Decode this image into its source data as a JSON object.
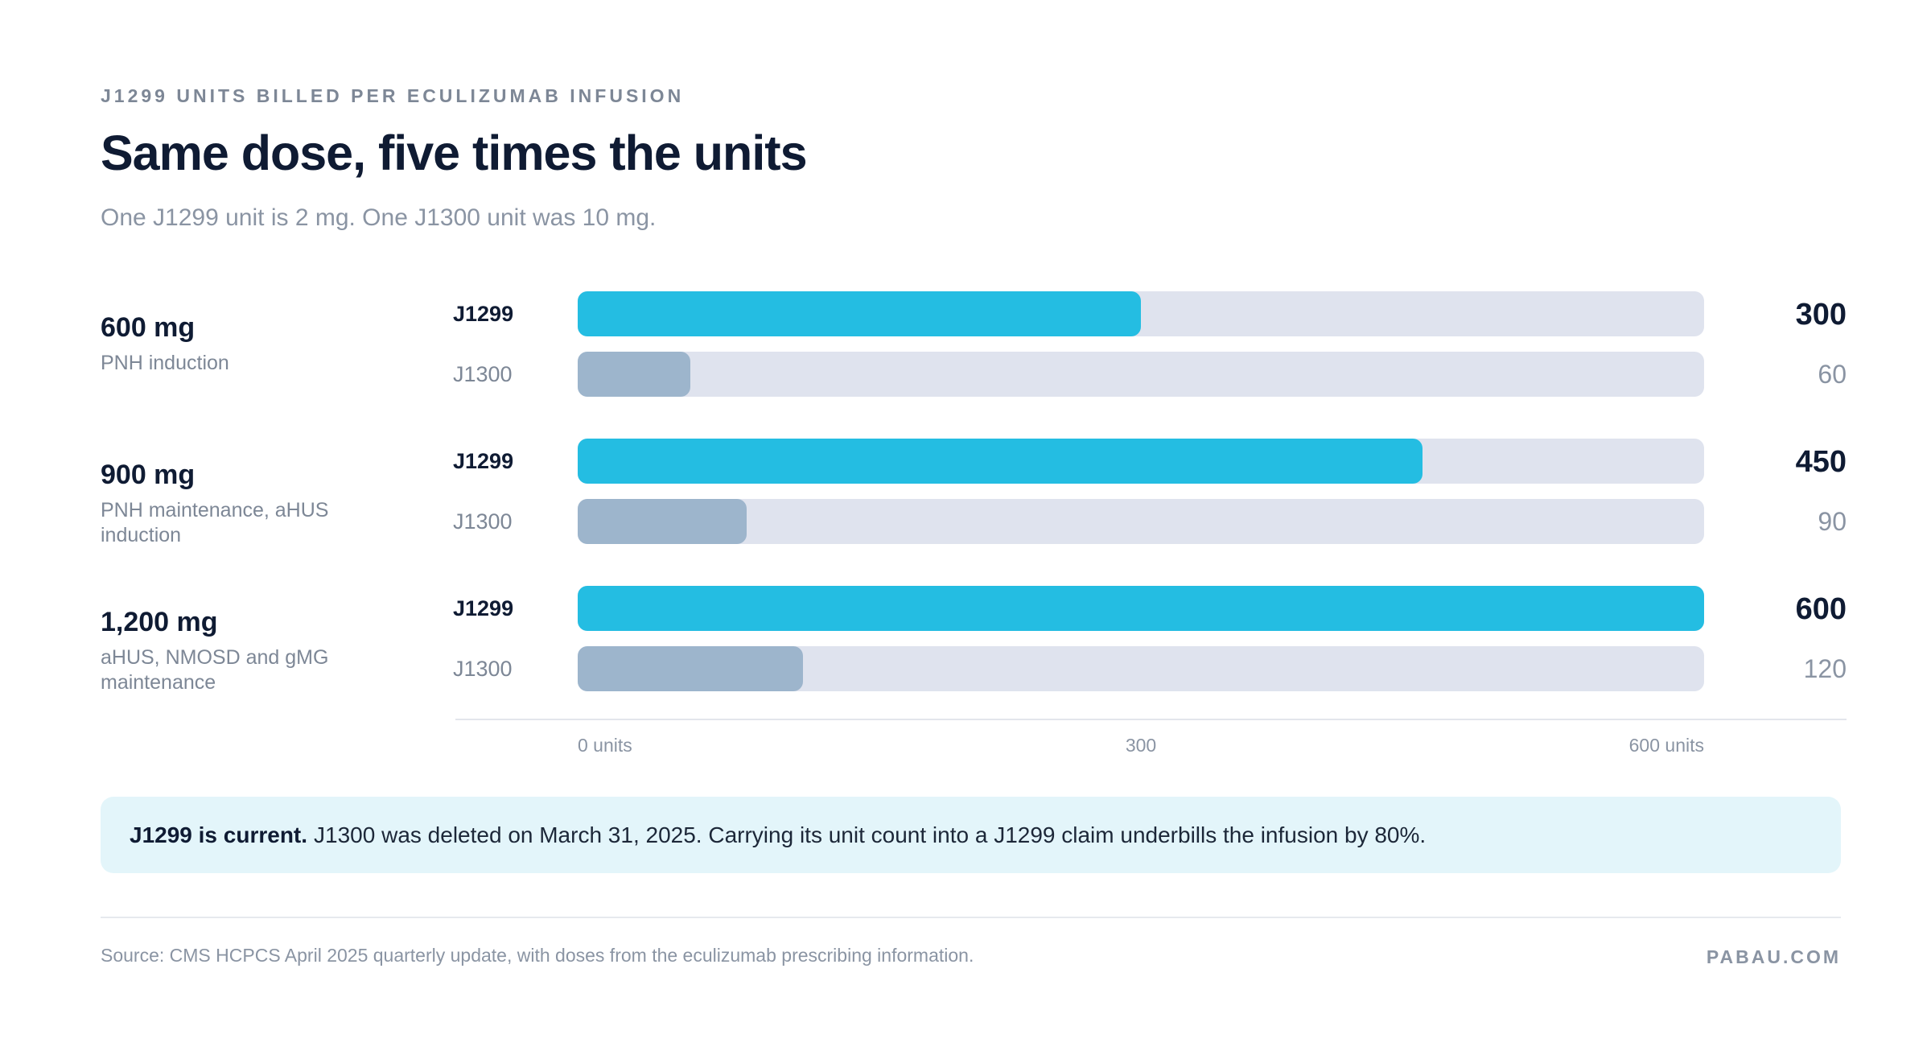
{
  "header": {
    "eyebrow": "J1299 UNITS BILLED PER ECULIZUMAB INFUSION",
    "title": "Same dose, five times the units",
    "subtitle": "One J1299 unit is 2 mg. One J1300 unit was 10 mg."
  },
  "chart_data": {
    "type": "bar",
    "orientation": "horizontal",
    "categories": [
      {
        "dose": "600 mg",
        "note": "PNH induction"
      },
      {
        "dose": "900 mg",
        "note": "PNH maintenance, aHUS induction"
      },
      {
        "dose": "1,200 mg",
        "note": "aHUS, NMOSD and gMG maintenance"
      }
    ],
    "series": [
      {
        "name": "J1299",
        "values": [
          300,
          450,
          600
        ],
        "color": "#24bde2",
        "value_color": "#0f1b33"
      },
      {
        "name": "J1300",
        "values": [
          60,
          90,
          120
        ],
        "color": "#9db5cc",
        "value_color": "#8a94a3"
      }
    ],
    "track_color": "#dfe3ee",
    "xlim": [
      0,
      600
    ],
    "ticks": [
      {
        "value": 0,
        "label": "0 units"
      },
      {
        "value": 300,
        "label": "300"
      },
      {
        "value": 600,
        "label": "600 units"
      }
    ],
    "grid": false
  },
  "callout": {
    "strong": "J1299 is current.",
    "text": "J1300 was deleted on March 31, 2025. Carrying its unit count into a J1299 claim underbills the infusion by 80%."
  },
  "footer": {
    "source": "Source: CMS HCPCS April 2025 quarterly update, with doses from the eculizumab prescribing information.",
    "brand": "PABAU.COM"
  }
}
